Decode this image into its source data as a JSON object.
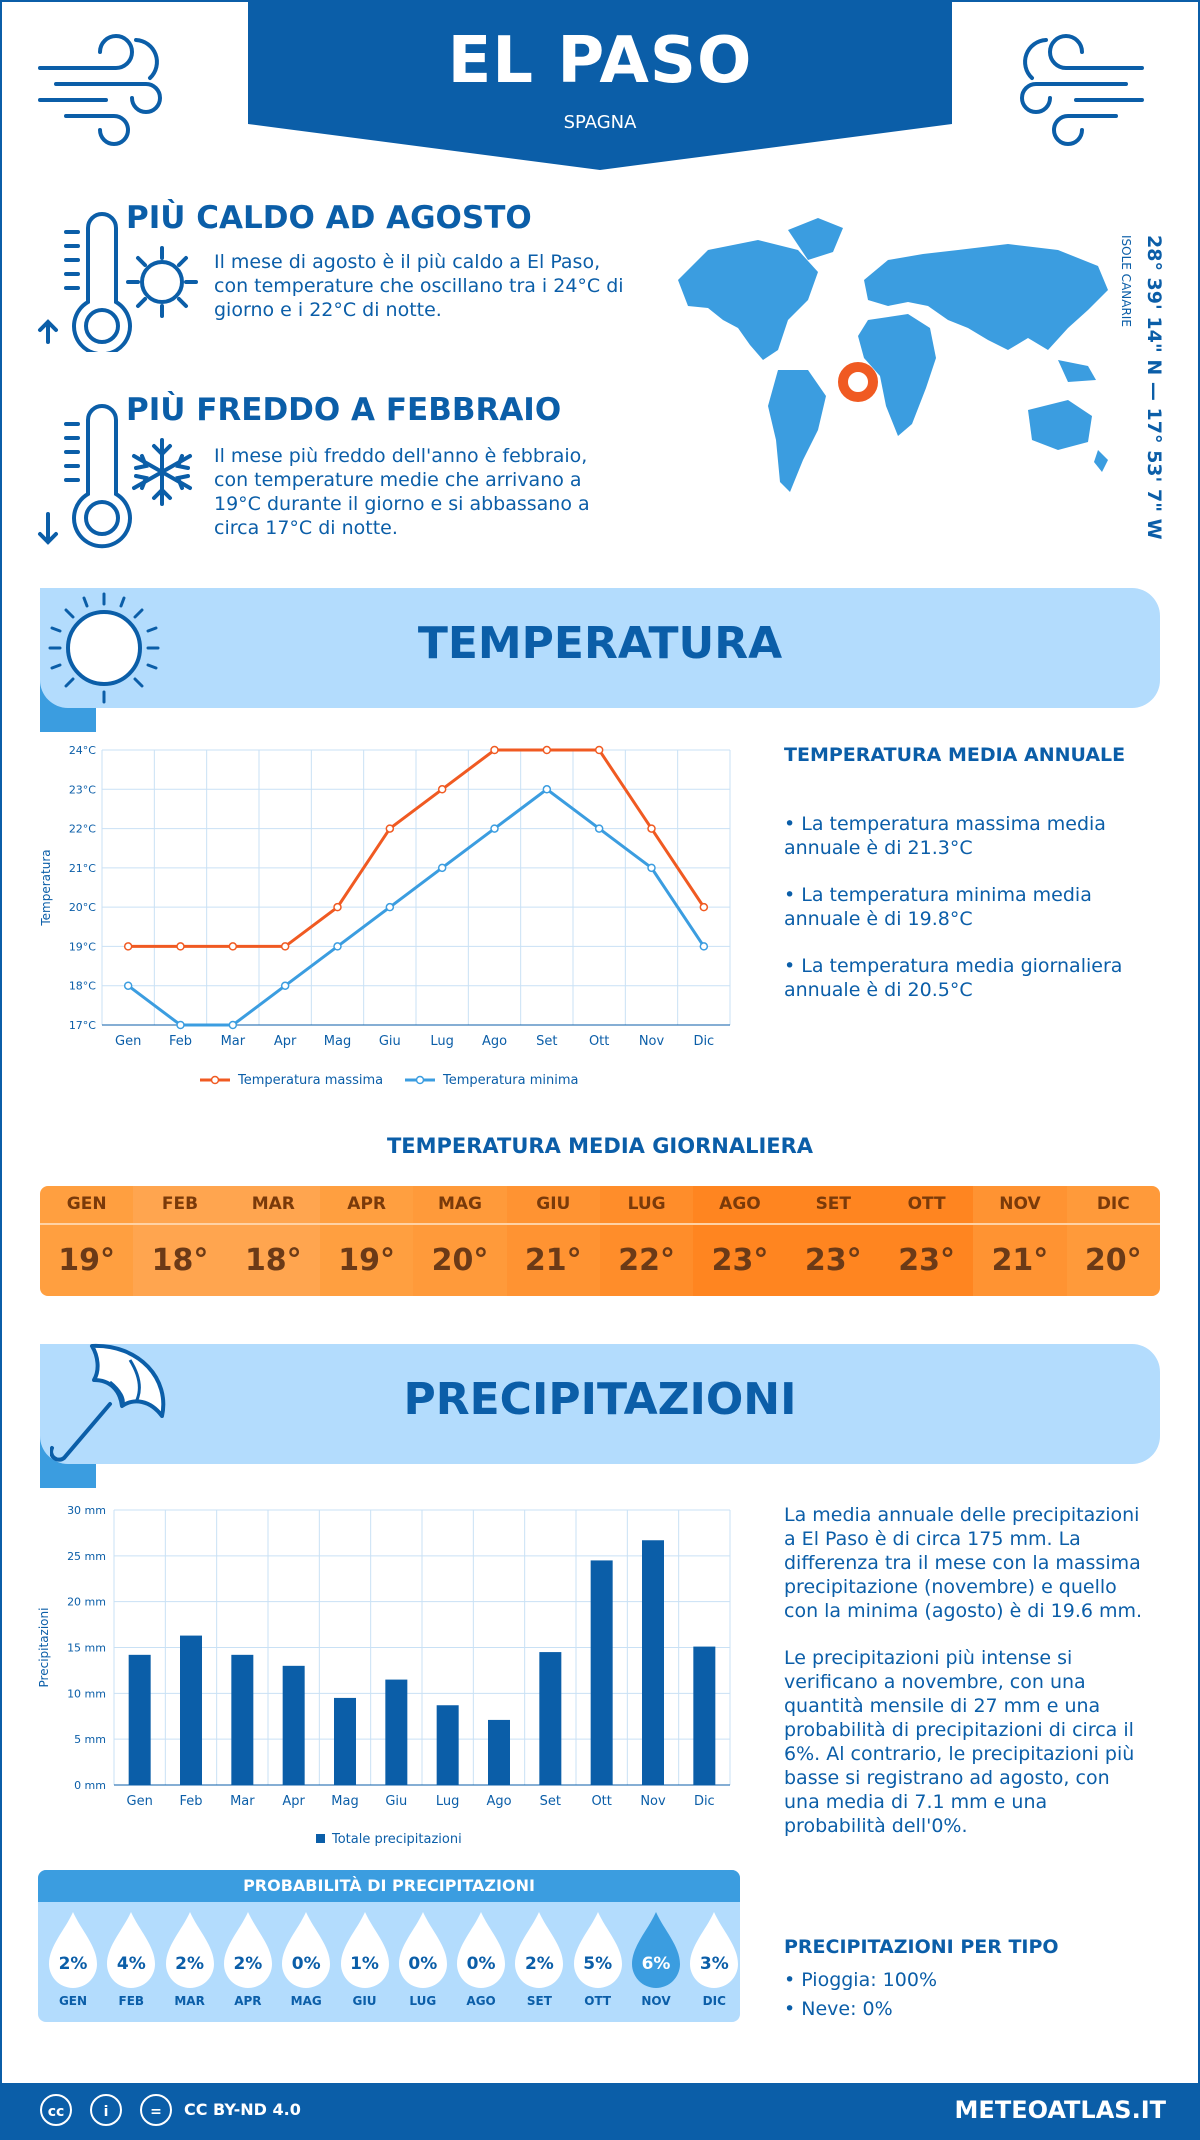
{
  "header": {
    "title": "EL PASO",
    "subtitle": "SPAGNA"
  },
  "warm": {
    "title": "PIÙ CALDO AD AGOSTO",
    "text": "Il mese di agosto è il più caldo a El Paso, con temperature che oscillano tra i 24°C di giorno e i 22°C di notte."
  },
  "cold": {
    "title": "PIÙ FREDDO A FEBBRAIO",
    "text": "Il mese più freddo dell'anno è febbraio, con temperature medie che arrivano a 19°C durante il giorno e si abbassano a circa 17°C di notte."
  },
  "coords": {
    "main": "28° 39' 14\" N — 17° 53' 7\" W",
    "region": "ISOLE CANARIE"
  },
  "temperature": {
    "section_title": "TEMPERATURA",
    "annual_title": "TEMPERATURA MEDIA ANNUALE",
    "annual_items": [
      "• La temperatura massima media annuale è di 21.3°C",
      "• La temperatura minima media annuale è di 19.8°C",
      "• La temperatura media giornaliera annuale è di 20.5°C"
    ],
    "daily_title": "TEMPERATURA MEDIA GIORNALIERA",
    "daily": [
      {
        "m": "GEN",
        "v": "19°"
      },
      {
        "m": "FEB",
        "v": "18°"
      },
      {
        "m": "MAR",
        "v": "18°"
      },
      {
        "m": "APR",
        "v": "19°"
      },
      {
        "m": "MAG",
        "v": "20°"
      },
      {
        "m": "GIU",
        "v": "21°"
      },
      {
        "m": "LUG",
        "v": "22°"
      },
      {
        "m": "AGO",
        "v": "23°"
      },
      {
        "m": "SET",
        "v": "23°"
      },
      {
        "m": "OTT",
        "v": "23°"
      },
      {
        "m": "NOV",
        "v": "21°"
      },
      {
        "m": "DIC",
        "v": "20°"
      }
    ],
    "daily_colors": [
      "#ff9f40",
      "#ffa54f",
      "#ffa54f",
      "#ff9f40",
      "#ff9a3a",
      "#ff9332",
      "#ff8d2a",
      "#ff8520",
      "#ff8520",
      "#ff8520",
      "#ff9332",
      "#ff9a3a"
    ]
  },
  "precipitation": {
    "section_title": "PRECIPITAZIONI",
    "text1": "La media annuale delle precipitazioni a El Paso è di circa 175 mm. La differenza tra il mese con la massima precipitazione (novembre) e quello con la minima (agosto) è di 19.6 mm.",
    "text2": "Le precipitazioni più intense si verificano a novembre, con una quantità mensile di 27 mm e una probabilità di precipitazioni di circa il 6%. Al contrario, le precipitazioni più basse si registrano ad agosto, con una media di 7.1 mm e una probabilità dell'0%.",
    "prob_title": "PROBABILITÀ DI PRECIPITAZIONI",
    "probabilities": [
      {
        "m": "GEN",
        "v": "2%"
      },
      {
        "m": "FEB",
        "v": "4%"
      },
      {
        "m": "MAR",
        "v": "2%"
      },
      {
        "m": "APR",
        "v": "2%"
      },
      {
        "m": "MAG",
        "v": "0%"
      },
      {
        "m": "GIU",
        "v": "1%"
      },
      {
        "m": "LUG",
        "v": "0%"
      },
      {
        "m": "AGO",
        "v": "0%"
      },
      {
        "m": "SET",
        "v": "2%"
      },
      {
        "m": "OTT",
        "v": "5%"
      },
      {
        "m": "NOV",
        "v": "6%"
      },
      {
        "m": "DIC",
        "v": "3%"
      }
    ],
    "highlight_month": "NOV",
    "type_title": "PRECIPITAZIONI PER TIPO",
    "type_items": [
      "• Pioggia: 100%",
      "• Neve: 0%"
    ]
  },
  "chart_data": [
    {
      "type": "line",
      "ylabel": "Temperatura",
      "categories": [
        "Gen",
        "Feb",
        "Mar",
        "Apr",
        "Mag",
        "Giu",
        "Lug",
        "Ago",
        "Set",
        "Ott",
        "Nov",
        "Dic"
      ],
      "yticks": [
        "17°C",
        "18°C",
        "19°C",
        "20°C",
        "21°C",
        "22°C",
        "23°C",
        "24°C"
      ],
      "ylim": [
        17,
        24
      ],
      "series": [
        {
          "name": "Temperatura massima",
          "color": "#f05a22",
          "values": [
            19,
            19,
            19,
            19,
            20,
            22,
            23,
            24,
            24,
            24,
            22,
            20
          ]
        },
        {
          "name": "Temperatura minima",
          "color": "#3b9de0",
          "values": [
            18,
            17,
            17,
            18,
            19,
            20,
            21,
            22,
            23,
            22,
            21,
            19
          ]
        }
      ],
      "legend": "bottom"
    },
    {
      "type": "bar",
      "ylabel": "Precipitazioni",
      "categories": [
        "Gen",
        "Feb",
        "Mar",
        "Apr",
        "Mag",
        "Giu",
        "Lug",
        "Ago",
        "Set",
        "Ott",
        "Nov",
        "Dic"
      ],
      "yticks": [
        "0 mm",
        "5 mm",
        "10 mm",
        "15 mm",
        "20 mm",
        "25 mm",
        "30 mm"
      ],
      "ylim": [
        0,
        30
      ],
      "series": [
        {
          "name": "Totale precipitazioni",
          "color": "#0b5ea8",
          "values": [
            14.2,
            16.3,
            14.2,
            13.0,
            9.5,
            11.5,
            8.7,
            7.1,
            14.5,
            24.5,
            26.7,
            15.1
          ]
        }
      ],
      "legend": "bottom"
    }
  ],
  "footer": {
    "license": "CC BY-ND 4.0",
    "site": "METEOATLAS.IT"
  }
}
